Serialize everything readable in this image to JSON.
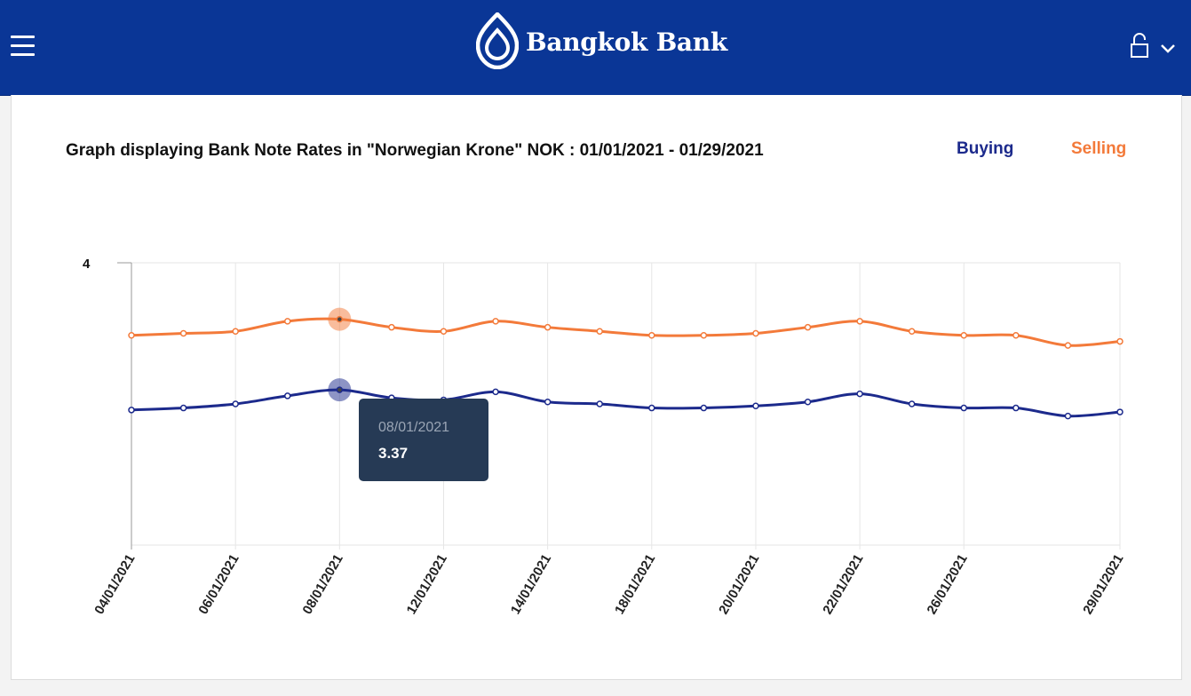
{
  "header": {
    "brand_name": "Bangkok Bank",
    "background_color": "#0a3696",
    "menu_icon": "hamburger-menu-icon",
    "lock_icon": "lock-icon",
    "chevron_icon": "chevron-down-icon"
  },
  "chart": {
    "title": "Graph displaying Bank Note Rates in \"Norwegian Krone\" NOK : 01/01/2021 - 01/29/2021",
    "legend": {
      "buying_label": "Buying",
      "selling_label": "Selling"
    },
    "tooltip": {
      "date": "08/01/2021",
      "value": "3.37"
    }
  },
  "chart_data": {
    "type": "line",
    "title": "Graph displaying Bank Note Rates in \"Norwegian Krone\" NOK : 01/01/2021 - 01/29/2021",
    "xlabel": "",
    "ylabel": "",
    "ylim": [
      2.6,
      4
    ],
    "y_ticks": [
      "4"
    ],
    "grid": true,
    "legend_position": "top-right",
    "x": [
      "04/01/2021",
      "05/01/2021",
      "06/01/2021",
      "07/01/2021",
      "08/01/2021",
      "11/01/2021",
      "12/01/2021",
      "13/01/2021",
      "14/01/2021",
      "15/01/2021",
      "18/01/2021",
      "19/01/2021",
      "20/01/2021",
      "21/01/2021",
      "22/01/2021",
      "25/01/2021",
      "26/01/2021",
      "27/01/2021",
      "28/01/2021",
      "29/01/2021"
    ],
    "x_tick_labels": [
      "04/01/2021",
      "06/01/2021",
      "08/01/2021",
      "12/01/2021",
      "14/01/2021",
      "18/01/2021",
      "20/01/2021",
      "22/01/2021",
      "26/01/2021",
      "29/01/2021"
    ],
    "series": [
      {
        "name": "Buying",
        "color": "#1c2a8c",
        "values": [
          3.27,
          3.28,
          3.3,
          3.34,
          3.37,
          3.33,
          3.32,
          3.36,
          3.31,
          3.3,
          3.28,
          3.28,
          3.29,
          3.31,
          3.35,
          3.3,
          3.28,
          3.28,
          3.24,
          3.26
        ]
      },
      {
        "name": "Selling",
        "color": "#f37a3a",
        "values": [
          3.64,
          3.65,
          3.66,
          3.71,
          3.72,
          3.68,
          3.66,
          3.71,
          3.68,
          3.66,
          3.64,
          3.64,
          3.65,
          3.68,
          3.71,
          3.66,
          3.64,
          3.64,
          3.59,
          3.61
        ]
      }
    ],
    "highlight": {
      "index": 4,
      "series": "Buying",
      "date": "08/01/2021",
      "value": "3.37"
    }
  }
}
